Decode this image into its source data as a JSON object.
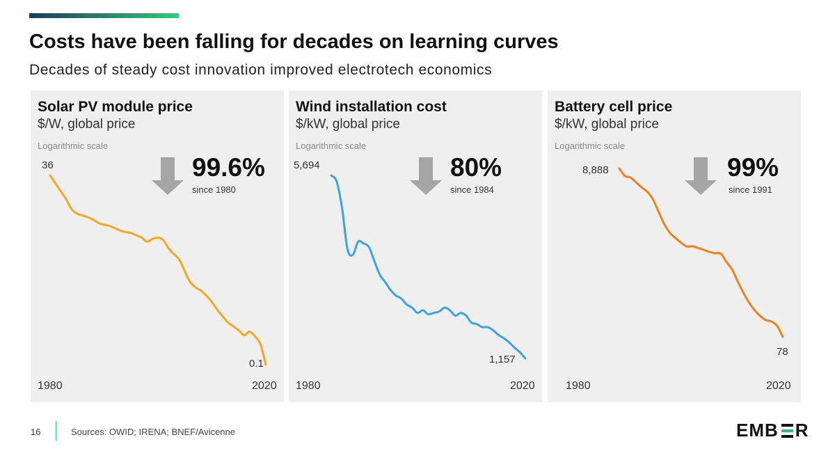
{
  "header": {
    "title": "Costs have been falling for decades on learning curves",
    "subtitle": "Decades of steady cost innovation improved electrotech economics"
  },
  "colors": {
    "accent_gradient_start": "#1e3a5f",
    "accent_gradient_end": "#27d07a",
    "panel_background": "#efefef",
    "arrow": "#a5a5a5",
    "footer_separator": "#27d07a"
  },
  "chart_data": [
    {
      "type": "line",
      "title": "Solar PV module price",
      "unit": "$/W, global price",
      "scale_note": "Logarithmic scale",
      "y_scale": "log",
      "color": "#f5a623",
      "x_start_label": "1980",
      "x_end_label": "2020",
      "start_value_label": "36",
      "end_value_label": "0.1",
      "decline_pct": "99.6%",
      "since_label": "since 1980",
      "x": [
        1980,
        1981,
        1982,
        1983,
        1984,
        1985,
        1986,
        1987,
        1988,
        1989,
        1990,
        1991,
        1992,
        1993,
        1994,
        1995,
        1996,
        1997,
        1998,
        1999,
        2000,
        2001,
        2002,
        2003,
        2004,
        2005,
        2006,
        2007,
        2008,
        2009,
        2010,
        2011,
        2012,
        2013,
        2014,
        2015,
        2016,
        2017,
        2018,
        2019,
        2020
      ],
      "y": [
        36,
        28,
        22,
        17,
        12.5,
        11,
        10.4,
        9.8,
        9.1,
        8.2,
        7.8,
        7.5,
        7.0,
        6.5,
        6.2,
        6.0,
        5.6,
        5.2,
        4.6,
        5.0,
        5.2,
        4.8,
        3.7,
        3.1,
        2.6,
        1.8,
        1.3,
        1.1,
        1.0,
        0.85,
        0.7,
        0.55,
        0.45,
        0.37,
        0.33,
        0.29,
        0.25,
        0.28,
        0.24,
        0.19,
        0.1
      ]
    },
    {
      "type": "line",
      "title": "Wind installation cost",
      "unit": "$/kW, global price",
      "scale_note": "Logarithmic scale",
      "y_scale": "log",
      "color": "#3aa3e3",
      "x_start_label": "1980",
      "x_end_label": "2020",
      "start_value_label": "5,694",
      "end_value_label": "1,157",
      "decline_pct": "80%",
      "since_label": "since 1984",
      "x": [
        1984,
        1985,
        1986,
        1987,
        1988,
        1989,
        1990,
        1991,
        1992,
        1993,
        1994,
        1995,
        1996,
        1997,
        1998,
        1999,
        2000,
        2001,
        2002,
        2003,
        2004,
        2005,
        2006,
        2007,
        2008,
        2009,
        2010,
        2011,
        2012,
        2013,
        2014,
        2015,
        2016,
        2017,
        2018,
        2019,
        2020
      ],
      "y": [
        5694,
        5400,
        4300,
        3000,
        2850,
        3200,
        3150,
        3050,
        2700,
        2400,
        2250,
        2100,
        2000,
        1950,
        1850,
        1800,
        1720,
        1760,
        1700,
        1720,
        1740,
        1800,
        1760,
        1680,
        1720,
        1680,
        1580,
        1560,
        1520,
        1520,
        1480,
        1420,
        1380,
        1330,
        1270,
        1220,
        1157
      ]
    },
    {
      "type": "line",
      "title": "Battery cell price",
      "unit": "$/kW, global price",
      "scale_note": "Logarithmic scale",
      "y_scale": "log",
      "color": "#f07f1e",
      "x_start_label": "1980",
      "x_end_label": "2020",
      "start_value_label": "8,888",
      "end_value_label": "78",
      "decline_pct": "99%",
      "since_label": "since 1991",
      "x": [
        1991,
        1992,
        1993,
        1994,
        1995,
        1996,
        1997,
        1998,
        1999,
        2000,
        2001,
        2002,
        2003,
        2004,
        2005,
        2006,
        2007,
        2008,
        2009,
        2010,
        2011,
        2012,
        2013,
        2014,
        2015,
        2016,
        2017,
        2018,
        2019,
        2020
      ],
      "y": [
        8888,
        7200,
        6900,
        6000,
        5200,
        4600,
        3700,
        2600,
        1850,
        1450,
        1250,
        1100,
        990,
        1000,
        950,
        900,
        850,
        820,
        810,
        640,
        520,
        370,
        270,
        205,
        165,
        140,
        125,
        120,
        106,
        78
      ]
    }
  ],
  "footer": {
    "page_number": "16",
    "sources": "Sources: OWID; IRENA; BNEF/Avicenne",
    "logo_left": "EMB",
    "logo_right": "R"
  }
}
